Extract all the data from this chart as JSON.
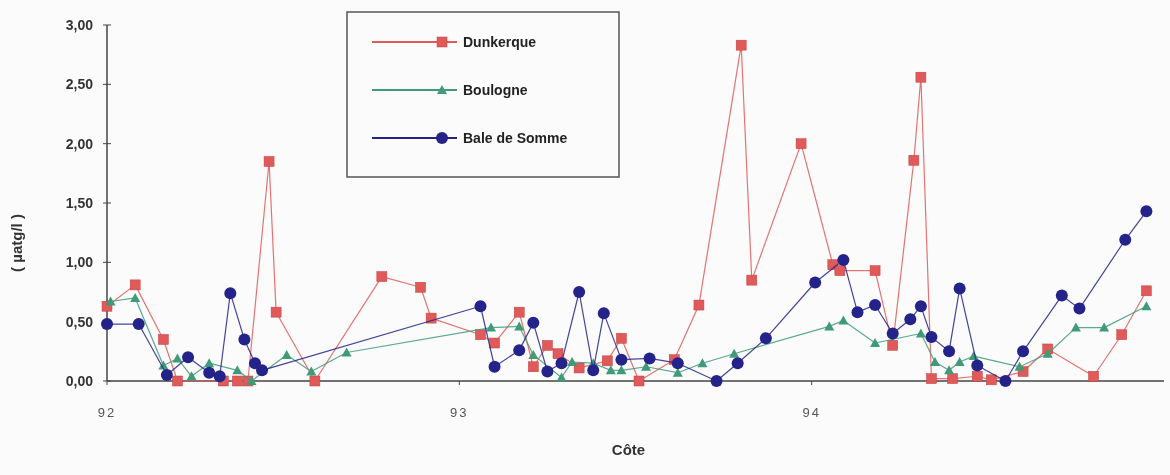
{
  "chart_data": {
    "type": "line",
    "xlabel": "Côte",
    "ylabel": "( µatg/l )",
    "xlim": [
      92,
      95
    ],
    "xticks": [
      92,
      93,
      94
    ],
    "ylim": [
      0,
      3
    ],
    "yticks": [
      {
        "value": 0,
        "label": "0,00"
      },
      {
        "value": 0.5,
        "label": "0,50"
      },
      {
        "value": 1,
        "label": "1,00"
      },
      {
        "value": 1.5,
        "label": "1,50"
      },
      {
        "value": 2,
        "label": "2,00"
      },
      {
        "value": 2.5,
        "label": "2,50"
      },
      {
        "value": 3,
        "label": "3,00"
      }
    ],
    "grid": false,
    "legend": "top",
    "line_style": "solid",
    "series": [
      {
        "name": "Dunkerque",
        "color": "#e05a5a",
        "marker": "square",
        "x": [
          92.0,
          92.08,
          92.16,
          92.2,
          92.33,
          92.37,
          92.4,
          92.46,
          92.48,
          92.59,
          92.78,
          92.89,
          92.92,
          93.06,
          93.1,
          93.17,
          93.21,
          93.25,
          93.28,
          93.34,
          93.42,
          93.46,
          93.51,
          93.61,
          93.68,
          93.8,
          93.83,
          93.97,
          94.06,
          94.08,
          94.18,
          94.23,
          94.29,
          94.31,
          94.34,
          94.4,
          94.47,
          94.51,
          94.6,
          94.67,
          94.8,
          94.88,
          94.95
        ],
        "values": [
          0.63,
          0.81,
          0.35,
          0.0,
          0.0,
          0.0,
          0.0,
          1.85,
          0.58,
          0.0,
          0.88,
          0.79,
          0.53,
          0.39,
          0.32,
          0.58,
          0.12,
          0.3,
          0.23,
          0.11,
          0.17,
          0.36,
          0.0,
          0.18,
          0.64,
          2.83,
          0.85,
          2.0,
          0.98,
          0.93,
          0.93,
          0.3,
          1.86,
          2.56,
          0.02,
          0.02,
          0.04,
          0.01,
          0.08,
          0.27,
          0.04,
          0.39,
          0.76
        ]
      },
      {
        "name": "Boulogne",
        "color": "#3f9a78",
        "marker": "triangle",
        "x": [
          92.01,
          92.08,
          92.16,
          92.2,
          92.24,
          92.29,
          92.37,
          92.41,
          92.51,
          92.58,
          92.68,
          93.09,
          93.17,
          93.21,
          93.29,
          93.32,
          93.38,
          93.43,
          93.46,
          93.53,
          93.62,
          93.69,
          93.78,
          94.05,
          94.09,
          94.18,
          94.31,
          94.35,
          94.39,
          94.42,
          94.46,
          94.59,
          94.67,
          94.75,
          94.83,
          94.95
        ],
        "values": [
          0.67,
          0.7,
          0.13,
          0.19,
          0.04,
          0.15,
          0.09,
          0.0,
          0.22,
          0.08,
          0.24,
          0.45,
          0.46,
          0.22,
          0.03,
          0.16,
          0.15,
          0.09,
          0.09,
          0.12,
          0.07,
          0.15,
          0.23,
          0.46,
          0.51,
          0.32,
          0.4,
          0.16,
          0.09,
          0.16,
          0.21,
          0.12,
          0.23,
          0.45,
          0.45,
          0.63
        ]
      },
      {
        "name": "Bale de Somme",
        "color": "#23238a",
        "marker": "circle",
        "x": [
          92.0,
          92.09,
          92.17,
          92.23,
          92.29,
          92.32,
          92.35,
          92.39,
          92.42,
          92.44,
          93.06,
          93.1,
          93.17,
          93.21,
          93.25,
          93.29,
          93.34,
          93.38,
          93.41,
          93.46,
          93.54,
          93.62,
          93.73,
          93.79,
          93.87,
          94.01,
          94.09,
          94.13,
          94.18,
          94.23,
          94.28,
          94.31,
          94.34,
          94.39,
          94.42,
          94.47,
          94.55,
          94.6,
          94.71,
          94.76,
          94.89,
          94.95
        ],
        "values": [
          0.48,
          0.48,
          0.05,
          0.2,
          0.07,
          0.04,
          0.74,
          0.35,
          0.15,
          0.09,
          0.63,
          0.12,
          0.26,
          0.49,
          0.08,
          0.15,
          0.75,
          0.09,
          0.57,
          0.18,
          0.19,
          0.15,
          0.0,
          0.15,
          0.36,
          0.83,
          1.02,
          0.58,
          0.64,
          0.4,
          0.52,
          0.63,
          0.37,
          0.25,
          0.78,
          0.13,
          0.0,
          0.25,
          0.72,
          0.61,
          1.19,
          1.43
        ]
      }
    ]
  }
}
